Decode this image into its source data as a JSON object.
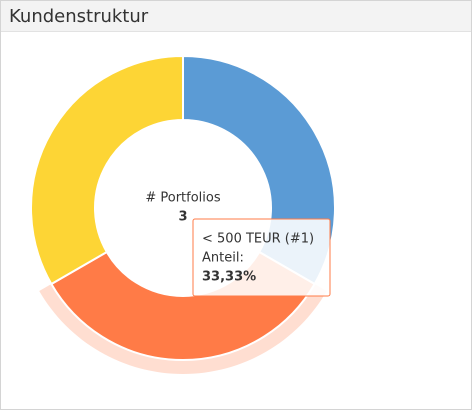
{
  "chart_data": {
    "type": "donut",
    "title": "Kundenstruktur",
    "center_label": "# Portfolios",
    "center_value": 3,
    "categories": [
      null,
      "< 500 TEUR (#1)",
      null
    ],
    "values": [
      33.33,
      33.33,
      33.33
    ],
    "value_labels": [
      null,
      "33,33%",
      null
    ],
    "colors": [
      "#5b9bd5",
      "#ff7b47",
      "#fdd535"
    ],
    "tooltip_label": "Anteil:"
  }
}
